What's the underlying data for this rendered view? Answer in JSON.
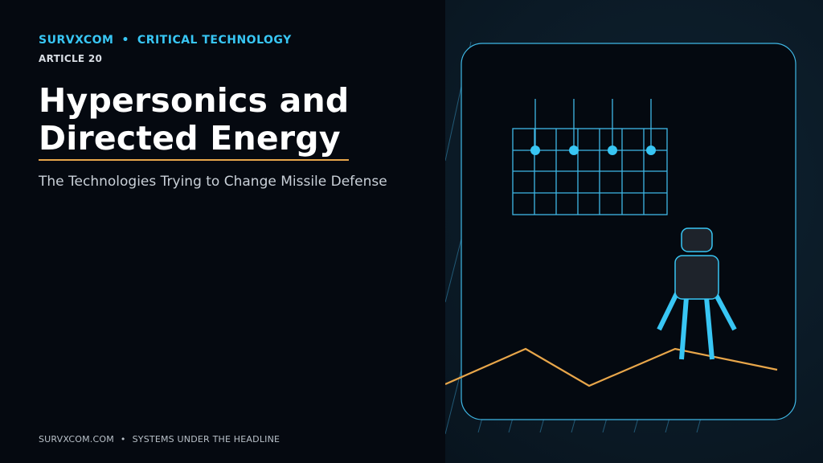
{
  "header": {
    "brand": "SURVXCOM",
    "separator": "•",
    "category": "CRITICAL TECHNOLOGY",
    "article_label": "ARTICLE 20"
  },
  "main": {
    "title_line1": "Hypersonics and",
    "title_line2": "Directed Energy",
    "subtitle": "The Technologies Trying to Change Missile Defense"
  },
  "footer": {
    "site": "SURVXCOM.COM",
    "separator": "•",
    "tagline": "SYSTEMS UNDER THE HEADLINE"
  },
  "colors": {
    "background": "#050910",
    "accent_blue": "#38c6f4",
    "accent_orange": "#e8a64a",
    "panel_dark": "#1e232b"
  },
  "illustration": {
    "elements": [
      "antenna-grid-icon",
      "robot-figure-icon",
      "trend-line-icon",
      "rounded-frame"
    ]
  }
}
